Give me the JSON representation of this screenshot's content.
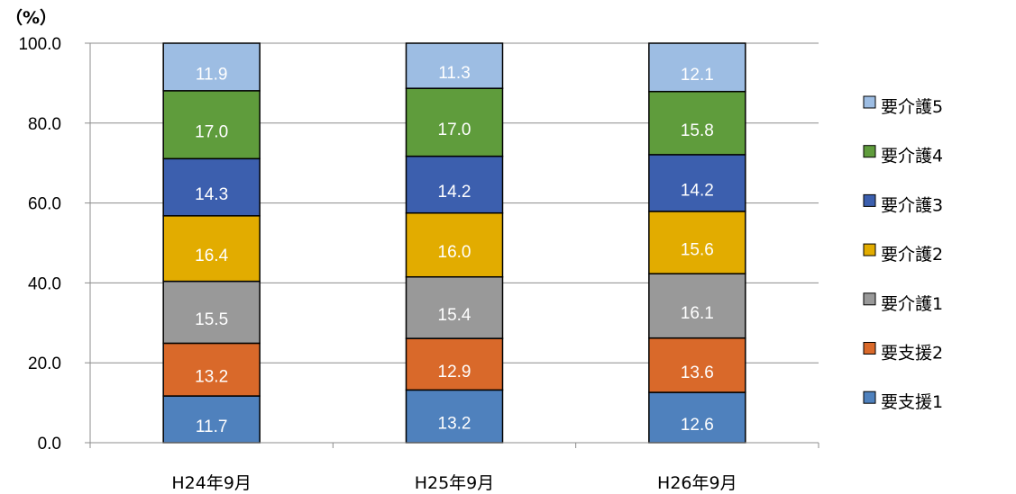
{
  "chart_data": {
    "type": "bar",
    "stacked": true,
    "unit_label": "（%）",
    "categories": [
      "H24年9月",
      "H25年9月",
      "H26年9月"
    ],
    "ylim": [
      0,
      100
    ],
    "yticks": [
      "0.0",
      "20.0",
      "40.0",
      "60.0",
      "80.0",
      "100.0"
    ],
    "grid": true,
    "legend_position": "right",
    "series": [
      {
        "name": "要支援1",
        "color": "#4f81bd",
        "values": [
          11.7,
          13.2,
          12.6
        ]
      },
      {
        "name": "要支援2",
        "color": "#d9692a",
        "values": [
          13.2,
          12.9,
          13.6
        ]
      },
      {
        "name": "要介護1",
        "color": "#999999",
        "values": [
          15.5,
          15.4,
          16.1
        ]
      },
      {
        "name": "要介護2",
        "color": "#e2ac00",
        "values": [
          16.4,
          16.0,
          15.6
        ]
      },
      {
        "name": "要介護3",
        "color": "#3c5fae",
        "values": [
          14.3,
          14.2,
          14.2
        ]
      },
      {
        "name": "要介護4",
        "color": "#5f9c3c",
        "values": [
          17.0,
          17.0,
          15.8
        ]
      },
      {
        "name": "要介護5",
        "color": "#9dbde3",
        "values": [
          11.9,
          11.3,
          12.1
        ]
      }
    ]
  }
}
